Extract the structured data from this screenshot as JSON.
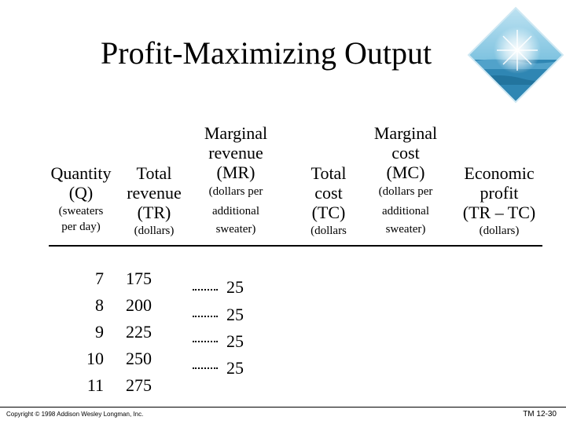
{
  "title": "Profit-Maximizing Output",
  "decoration": {
    "icon": "ocean-sunburst-image"
  },
  "headers": {
    "quantity": {
      "line1": "Quantity",
      "line2": "(Q)",
      "line3": "(sweaters",
      "line4": "per day)"
    },
    "total_revenue": {
      "line1": "Total",
      "line2": "revenue",
      "line3": "(TR)",
      "line4": "(dollars)"
    },
    "marginal_revenue": {
      "line1": "Marginal",
      "line2": "revenue",
      "line3": "(MR)",
      "line4": "(dollars per",
      "line5": "additional",
      "line6": "sweater)"
    },
    "total_cost": {
      "line1": "Total",
      "line2": "cost",
      "line3": "(TC)",
      "line4": "(dollars"
    },
    "marginal_cost": {
      "line1": "Marginal",
      "line2": "cost",
      "line3": "(MC)",
      "line4": "(dollars per",
      "line5": "additional",
      "line6": "sweater)"
    },
    "economic_profit": {
      "line1": "Economic",
      "line2": "profit",
      "line3": "(TR – TC)",
      "line4": "(dollars)"
    }
  },
  "rows": [
    {
      "q": "7",
      "tr": "175"
    },
    {
      "q": "8",
      "tr": "200"
    },
    {
      "q": "9",
      "tr": "225"
    },
    {
      "q": "10",
      "tr": "250"
    },
    {
      "q": "11",
      "tr": "275"
    }
  ],
  "marginal_revenue_values": [
    "25",
    "25",
    "25",
    "25"
  ],
  "footer": {
    "copyright": "Copyright © 1998 Addison Wesley Longman, Inc.",
    "slide_number": "TM 12-30"
  },
  "colors": {
    "text": "#000000",
    "background": "#ffffff",
    "ocean": "#3a8fb8",
    "sky": "#9fd0e6"
  }
}
